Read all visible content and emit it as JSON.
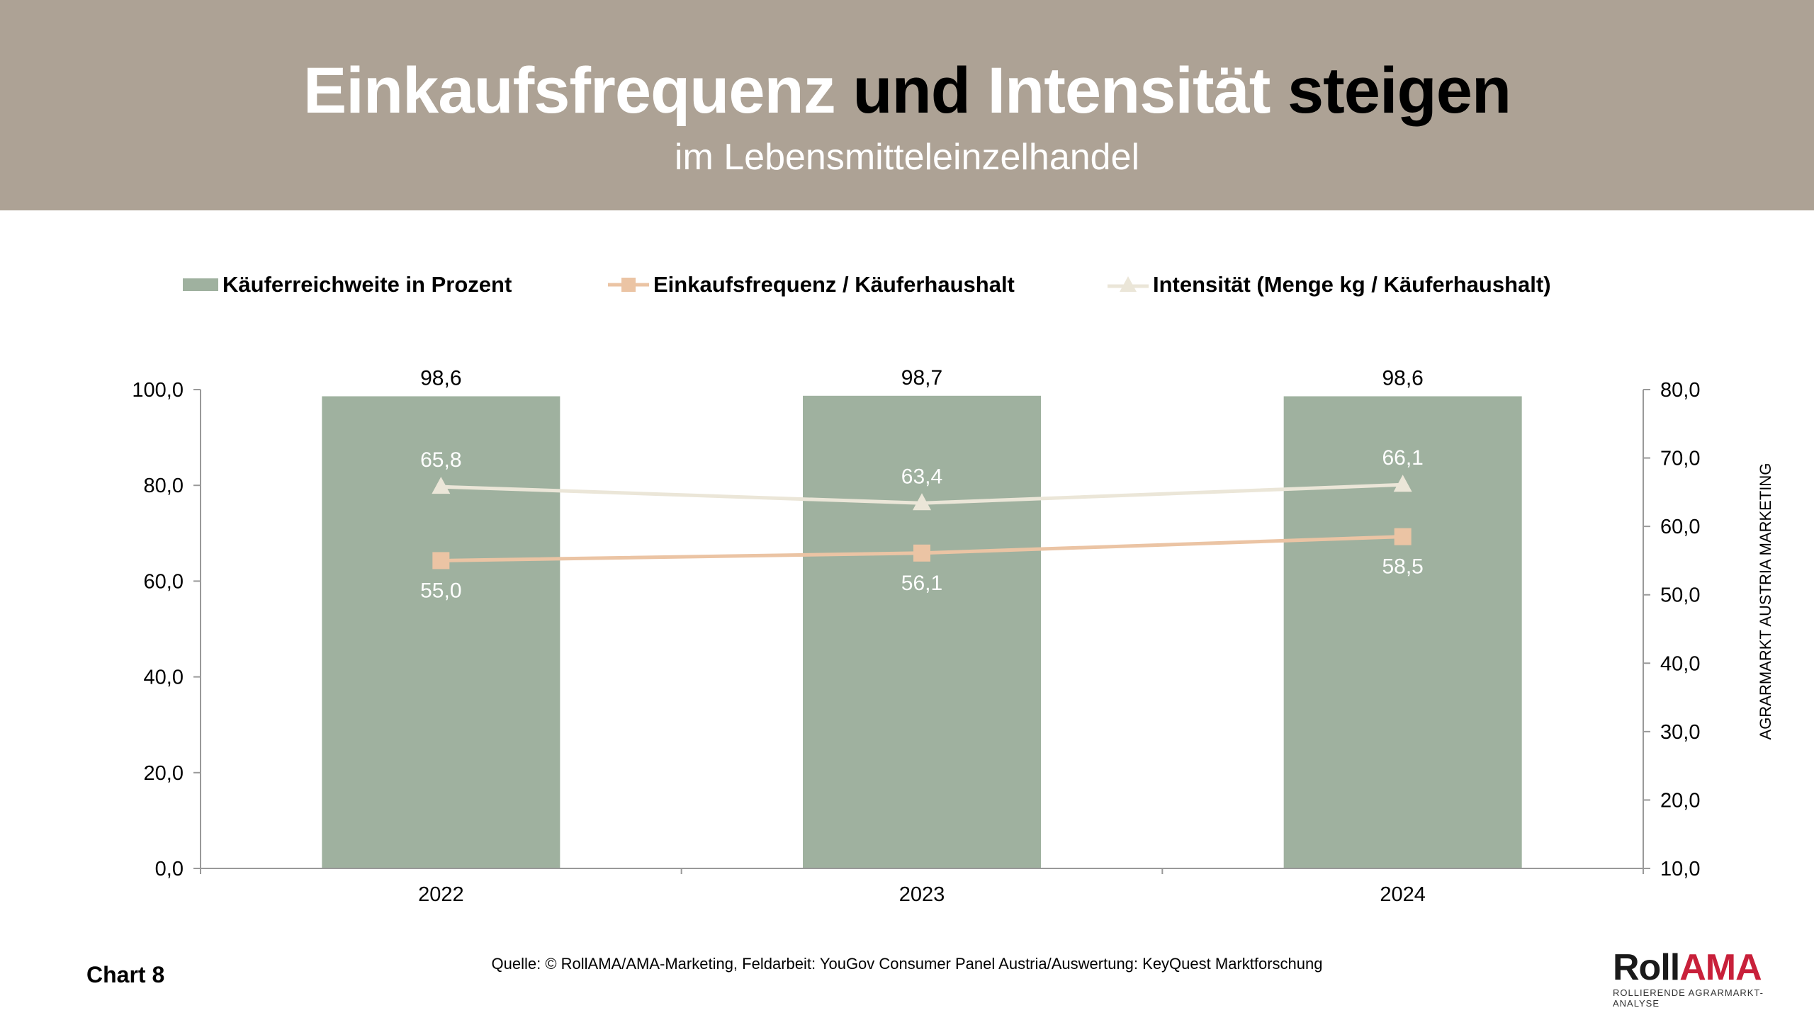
{
  "header": {
    "title_parts": [
      "Einkaufsfrequenz",
      "und",
      "Intensität",
      "steigen"
    ],
    "subtitle": "im Lebensmitteleinzelhandel",
    "background": "#ada295"
  },
  "side_text": "AGRARMARKT AUSTRIA MARKETING",
  "footer": {
    "chart_number": "Chart 8",
    "source": "Quelle: © RollAMA/AMA-Marketing, Feldarbeit: YouGov Consumer Panel Austria/Auswertung: KeyQuest Marktforschung",
    "logo_main_a": "Roll",
    "logo_main_b": "AMA",
    "logo_tagline": "ROLLIERENDE AGRARMARKT-ANALYSE"
  },
  "chart_data": {
    "type": "bar+line",
    "categories": [
      "2022",
      "2023",
      "2024"
    ],
    "legend_position": "top",
    "grid": false,
    "y_left": {
      "min": 0,
      "max": 100,
      "ticks": [
        "0,0",
        "20,0",
        "40,0",
        "60,0",
        "80,0",
        "100,0"
      ]
    },
    "y_right": {
      "min": 10,
      "max": 80,
      "ticks": [
        "10,0",
        "20,0",
        "30,0",
        "40,0",
        "50,0",
        "60,0",
        "70,0",
        "80,0"
      ]
    },
    "series": [
      {
        "name": "Käuferreichweite in Prozent",
        "type": "bar",
        "axis": "left",
        "values": [
          98.6,
          98.7,
          98.6
        ],
        "labels": [
          "98,6",
          "98,7",
          "98,6"
        ],
        "color": "#9fb19f"
      },
      {
        "name": "Einkaufsfrequenz / Käuferhaushalt",
        "type": "line",
        "marker": "square",
        "axis": "right",
        "values": [
          55.0,
          56.1,
          58.5
        ],
        "labels": [
          "55,0",
          "56,1",
          "58,5"
        ],
        "color": "#ebc4a4"
      },
      {
        "name": "Intensität (Menge kg / Käuferhaushalt)",
        "type": "line",
        "marker": "triangle",
        "axis": "right",
        "values": [
          65.8,
          63.4,
          66.1
        ],
        "labels": [
          "65,8",
          "63,4",
          "66,1"
        ],
        "color": "#ebe6d8"
      }
    ]
  }
}
